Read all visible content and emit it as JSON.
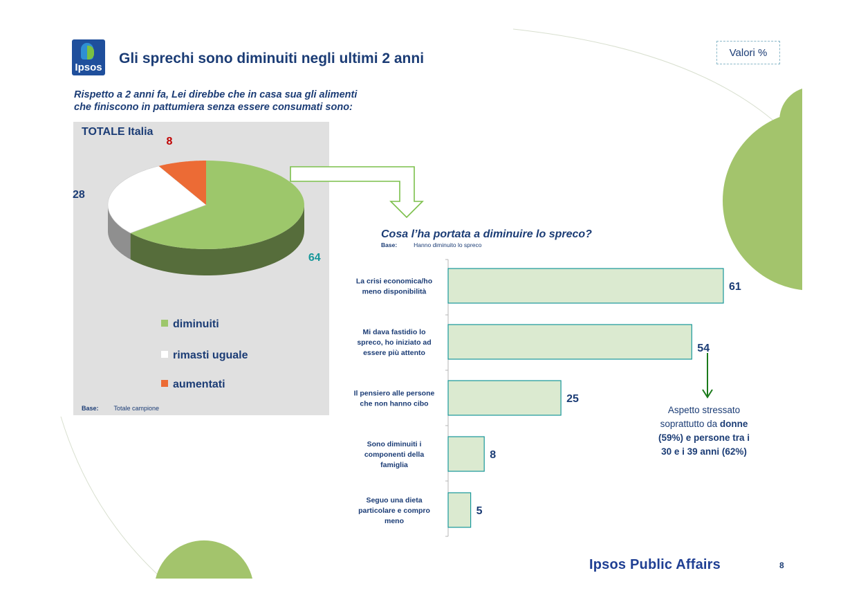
{
  "header": {
    "logo_text": "Ipsos",
    "title": "Gli sprechi sono diminuiti negli ultimi 2 anni",
    "badge": "Valori %"
  },
  "question": {
    "line1": "Rispetto a 2 anni fa, Lei direbbe che in casa sua gli alimenti",
    "line2": "che finiscono in pattumiera senza essere consumati sono:"
  },
  "pie_panel": {
    "title": "TOTALE Italia",
    "base_label": "Base:",
    "base_value": "Totale campione"
  },
  "bar_section": {
    "question": "Cosa l’ha portata a diminuire lo spreco?",
    "base_label": "Base:",
    "base_value": "Hanno diminuito lo spreco"
  },
  "callout": {
    "line1": "Aspetto stressato",
    "line2_prefix": "soprattutto da ",
    "line2_bold": "donne",
    "line3": "(59%) e persone tra i",
    "line4": "30 e i 39 anni (62%)"
  },
  "footer": {
    "brand": "Ipsos Public Affairs",
    "page": "8"
  },
  "chart_data": [
    {
      "type": "pie",
      "title": "TOTALE Italia",
      "slices": [
        {
          "label": "diminuiti",
          "value": 64,
          "color": "#9dc76b",
          "label_color": "#17979a"
        },
        {
          "label": "rimasti uguale",
          "value": 28,
          "color": "#ffffff",
          "label_color": "#1b3c75"
        },
        {
          "label": "aumentati",
          "value": 8,
          "color": "#ec6b35",
          "label_color": "#c00000"
        }
      ],
      "legend": "bottom"
    },
    {
      "type": "bar",
      "orientation": "horizontal",
      "categories": [
        [
          "La crisi economica/ho",
          "meno disponibilità"
        ],
        [
          "Mi dava fastidio lo",
          "spreco, ho iniziato ad",
          "essere più attento"
        ],
        [
          "Il pensiero alle persone",
          "che non hanno cibo"
        ],
        [
          "Sono diminuiti i",
          "componenti della",
          "famiglia"
        ],
        [
          "Seguo una dieta",
          "particolare e compro",
          "meno"
        ]
      ],
      "values": [
        61,
        54,
        25,
        8,
        5
      ],
      "bar_color": "#dbead0",
      "bar_border": "#17979a",
      "xlim": [
        0,
        70
      ]
    }
  ]
}
